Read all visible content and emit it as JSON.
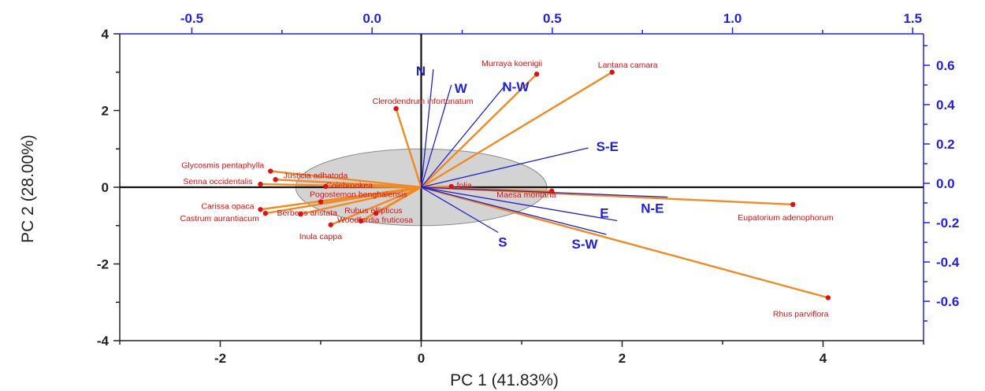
{
  "chart_data": {
    "type": "scatter",
    "subtype": "pca-biplot",
    "xlabel": "PC 1 (41.83%)",
    "ylabel": "PC 2 (28.00%)",
    "xlim": [
      -3,
      5
    ],
    "ylim": [
      -4,
      4
    ],
    "x_ticks": [
      "-2",
      "0",
      "2",
      "4"
    ],
    "y_ticks": [
      "-4",
      "-2",
      "0",
      "2",
      "4"
    ],
    "loading_xlim": [
      -0.7,
      1.53
    ],
    "loading_ylim": [
      -0.8,
      0.76
    ],
    "top_ticks": [
      "-0.5",
      "0.0",
      "0.5",
      "1.0",
      "1.5"
    ],
    "right_ticks": [
      "-0.6",
      "-0.4",
      "-0.2",
      "0.0",
      "0.2",
      "0.4",
      "0.6"
    ],
    "grid": false,
    "ellipse": {
      "cx": 0.0,
      "cy": 0.0,
      "rx": 1.25,
      "ry": 1.0,
      "fill": "#cccccc"
    },
    "species": [
      {
        "name": "Lantana camara",
        "x": 1.9,
        "y": 3.0
      },
      {
        "name": "Murraya koenigii",
        "x": 1.15,
        "y": 2.95
      },
      {
        "name": "Clerodendrum infortunatum",
        "x": -0.25,
        "y": 2.05
      },
      {
        "name": "Glycosmis pentaphylla",
        "x": -1.5,
        "y": 0.42
      },
      {
        "name": "Justicia adhatoda",
        "x": -1.45,
        "y": 0.2
      },
      {
        "name": "Senna occidentalis",
        "x": -1.6,
        "y": 0.08
      },
      {
        "name": "Colebrookea",
        "x": -0.95,
        "y": 0.02
      },
      {
        "name": "...folia",
        "x": 0.3,
        "y": 0.02
      },
      {
        "name": "Pogostemon benghalensis",
        "x": -1.0,
        "y": -0.38
      },
      {
        "name": "Carissa opaca",
        "x": -1.6,
        "y": -0.58
      },
      {
        "name": "Castrum aurantiacum",
        "x": -1.55,
        "y": -0.68
      },
      {
        "name": "Berberis aristata",
        "x": -1.2,
        "y": -0.7
      },
      {
        "name": "Rubus ellipticus",
        "x": -0.45,
        "y": -0.68
      },
      {
        "name": "Woodfordia fruticosa",
        "x": -0.6,
        "y": -0.88
      },
      {
        "name": "Inula cappa",
        "x": -0.9,
        "y": -0.98
      },
      {
        "name": "Maesa montana",
        "x": 1.3,
        "y": -0.1
      },
      {
        "name": "Eupatorium adenophorum",
        "x": 3.7,
        "y": -0.45
      },
      {
        "name": "Rhus parviflora",
        "x": 4.05,
        "y": -2.88
      }
    ],
    "directions": [
      {
        "name": "N",
        "x": 0.17,
        "y": 0.58
      },
      {
        "name": "W",
        "x": 0.22,
        "y": 0.5
      },
      {
        "name": "N-W",
        "x": 0.37,
        "y": 0.5
      },
      {
        "name": "S-E",
        "x": 0.6,
        "y": 0.18
      },
      {
        "name": "N-E",
        "x": 0.82,
        "y": -0.07
      },
      {
        "name": "E",
        "x": 0.68,
        "y": -0.19
      },
      {
        "name": "S-W",
        "x": 0.65,
        "y": -0.26
      },
      {
        "name": "S",
        "x": 0.35,
        "y": -0.25
      }
    ],
    "colors": {
      "species": "#dd1111",
      "vector": "#f08a24",
      "direction": "#2222cc",
      "ellipse": "#cccccc",
      "axis": "#222222"
    }
  }
}
